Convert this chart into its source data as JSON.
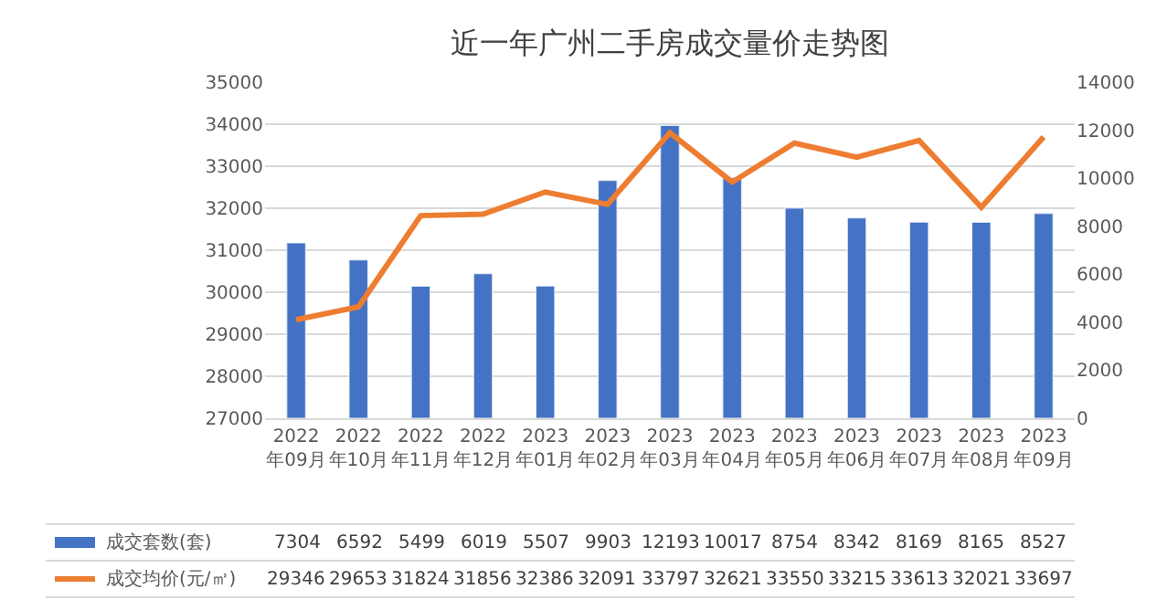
{
  "chart_data": {
    "type": "bar",
    "title": "近一年广州二手房成交量价走势图",
    "categories": [
      "2022年09月",
      "2022年10月",
      "2022年11月",
      "2022年12月",
      "2023年01月",
      "2023年02月",
      "2023年03月",
      "2023年04月",
      "2023年05月",
      "2023年06月",
      "2023年07月",
      "2023年08月",
      "2023年09月"
    ],
    "series": [
      {
        "name": "成交套数(套)",
        "axis": "y2",
        "color": "#4472c4",
        "values": [
          7304,
          6592,
          5499,
          6019,
          5507,
          9903,
          12193,
          10017,
          8754,
          8342,
          8169,
          8165,
          8527
        ]
      },
      {
        "name": "成交均价(元/㎡)",
        "type": "line",
        "axis": "y",
        "color": "#ed7d31",
        "values": [
          29346,
          29653,
          31824,
          31856,
          32386,
          32091,
          33797,
          32621,
          33550,
          33215,
          33613,
          32021,
          33697
        ]
      }
    ],
    "ylim": [
      27000,
      35000
    ],
    "yticks": [
      27000,
      28000,
      29000,
      30000,
      31000,
      32000,
      33000,
      34000,
      35000
    ],
    "y2lim": [
      0,
      14000
    ],
    "y2ticks": [
      0,
      2000,
      4000,
      6000,
      8000,
      10000,
      12000,
      14000
    ],
    "grid": "y",
    "legend": "bottom",
    "data_labels": true,
    "marker": "none",
    "line_style": "solid"
  }
}
